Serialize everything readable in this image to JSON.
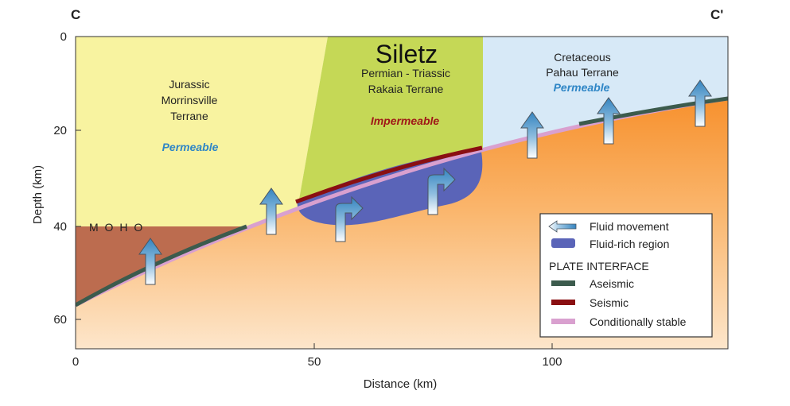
{
  "section": {
    "start_label": "C",
    "end_label": "C'"
  },
  "axes": {
    "xlabel": "Distance (km)",
    "ylabel": "Depth (km)",
    "x_ticks": [
      "0",
      "50",
      "100"
    ],
    "y_ticks": [
      "0",
      "20",
      "40",
      "60"
    ]
  },
  "regions": {
    "jurassic": {
      "lines": [
        "Jurassic",
        "Morrinsville",
        "Terrane"
      ],
      "property": "Permeable"
    },
    "siletz": {
      "title": "Siletz",
      "lines": [
        "Permian - Triassic",
        "Rakaia Terrane"
      ],
      "property": "Impermeable"
    },
    "cretaceous": {
      "lines": [
        "Cretaceous",
        "Pahau Terrane"
      ],
      "property": "Permeable"
    },
    "moho": "M O H O"
  },
  "legend": {
    "fluid_movement": "Fluid movement",
    "fluid_rich": "Fluid-rich region",
    "plate_interface": "PLATE INTERFACE",
    "aseismic": "Aseismic",
    "seismic": "Seismic",
    "conditionally_stable": "Conditionally stable"
  },
  "colors": {
    "jurassic_fill": "#f8f3a0",
    "siletz_fill": "#c5d856",
    "cretaceous_fill": "#d7e9f7",
    "mantle_fill": "#bc6c4f",
    "slab_top": "#f7912e",
    "slab_bottom": "#fde6cb",
    "fluid_rich": "#5a64b8",
    "aseismic": "#3c5b4d",
    "seismic": "#8a0f12",
    "conditionally_stable": "#d9a0cf",
    "permeable_text": "#2f86c6",
    "impermeable_text": "#a01818",
    "arrow_blue": "#3584bf"
  }
}
